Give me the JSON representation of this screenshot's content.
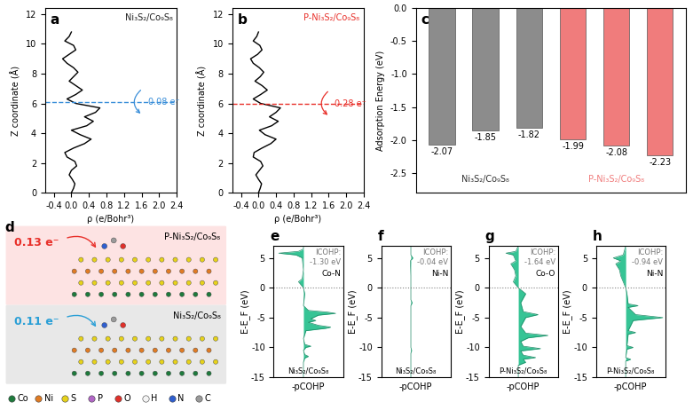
{
  "chart_data": [
    {
      "panel_label": "a",
      "type": "line",
      "title": {
        "text": "Ni₃S₂/Co₉S₈",
        "color": "#222222"
      },
      "x_label": "ρ (e/Bohr³)",
      "y_label": "Z coordinate (Å)",
      "y": [
        0,
        0.3,
        0.6,
        0.9,
        1.2,
        1.5,
        1.8,
        2.1,
        2.4,
        2.7,
        3.0,
        3.3,
        3.6,
        3.9,
        4.2,
        4.5,
        4.8,
        5.1,
        5.4,
        5.7,
        6.0,
        6.3,
        6.6,
        6.9,
        7.2,
        7.5,
        7.8,
        8.1,
        8.4,
        8.7,
        9.0,
        9.3,
        9.6,
        9.9,
        10.2,
        10.5,
        10.8
      ],
      "x": [
        0.0,
        0.05,
        0.08,
        0.02,
        -0.05,
        0.0,
        0.12,
        0.08,
        -0.1,
        -0.15,
        0.05,
        0.3,
        0.45,
        0.2,
        0.0,
        0.35,
        0.5,
        0.3,
        0.55,
        0.65,
        0.1,
        -0.1,
        0.1,
        0.25,
        0.1,
        -0.05,
        0.05,
        0.15,
        0.05,
        -0.1,
        -0.2,
        -0.05,
        0.1,
        0.05,
        -0.15,
        -0.05,
        0.0
      ],
      "color": "#000000",
      "interface": {
        "z": 6.1,
        "color": "#3b8fd9",
        "line_style": "dashed"
      },
      "charge_transfer": {
        "text": "0.08 e⁻",
        "color": "#3b8fd9"
      },
      "xlim": [
        -0.6,
        2.4
      ],
      "xticks": [
        -0.4,
        0.0,
        0.4,
        0.8,
        1.2,
        1.6,
        2.0,
        2.4
      ],
      "ylim": [
        0,
        12.4
      ],
      "yticks": [
        0,
        2,
        4,
        6,
        8,
        10,
        12
      ]
    },
    {
      "panel_label": "b",
      "type": "line",
      "title": {
        "text": "P-Ni₃S₂/Co₉S₈",
        "color": "#e8302a"
      },
      "x_label": "ρ (e/Bohr³)",
      "y_label": "Z coordinate (Å)",
      "y": [
        0,
        0.3,
        0.6,
        0.9,
        1.2,
        1.5,
        1.8,
        2.1,
        2.4,
        2.7,
        3.0,
        3.3,
        3.6,
        3.9,
        4.2,
        4.5,
        4.8,
        5.1,
        5.4,
        5.7,
        6.0,
        6.3,
        6.6,
        6.9,
        7.2,
        7.5,
        7.8,
        8.1,
        8.4,
        8.7,
        9.0,
        9.3,
        9.6,
        9.9,
        10.2,
        10.5,
        10.8
      ],
      "x": [
        0.0,
        0.04,
        0.07,
        0.0,
        -0.06,
        0.02,
        0.1,
        0.05,
        -0.12,
        -0.1,
        0.08,
        0.28,
        0.4,
        0.15,
        0.02,
        0.3,
        0.45,
        0.25,
        0.4,
        0.5,
        0.05,
        -0.12,
        0.05,
        0.2,
        0.08,
        -0.08,
        0.04,
        0.12,
        0.02,
        -0.12,
        -0.18,
        -0.02,
        0.08,
        0.03,
        -0.12,
        -0.04,
        0.0
      ],
      "color": "#000000",
      "interface": {
        "z": 6.0,
        "color": "#e8302a",
        "line_style": "dashed"
      },
      "charge_transfer": {
        "text": "0.28 e⁻",
        "color": "#e8302a"
      },
      "xlim": [
        -0.6,
        2.4
      ],
      "xticks": [
        -0.4,
        0.0,
        0.4,
        0.8,
        1.2,
        1.6,
        2.0,
        2.4
      ],
      "ylim": [
        0,
        12.4
      ],
      "yticks": [
        0,
        2,
        4,
        6,
        8,
        10,
        12
      ]
    },
    {
      "panel_label": "c",
      "type": "bar",
      "y_label": "Adsorption Energy (eV)",
      "categories": [
        null,
        null,
        null,
        null,
        null,
        null
      ],
      "series": [
        {
          "name": "Ni₃S₂/Co₉S₈",
          "color": "#8c8c8c",
          "values": [
            -2.07,
            -1.85,
            -1.82,
            null,
            null,
            null
          ]
        },
        {
          "name": "P-Ni₃S₂/Co₉S₈",
          "color": "#f07c7c",
          "values": [
            null,
            null,
            null,
            -1.99,
            -2.08,
            -2.23
          ]
        }
      ],
      "data_labels": true,
      "ylim": [
        -2.8,
        0
      ],
      "yticks": [
        0.0,
        -0.5,
        -1.0,
        -1.5,
        -2.0,
        -2.5
      ]
    },
    {
      "panel_label": "e",
      "type": "area",
      "x_label": "-pCOHP",
      "y_label": "E-E_F (eV)",
      "bond": "Co-N",
      "icohp": [
        "ICOHP:",
        "-1.30 eV"
      ],
      "model": "Ni₃S₂/Co₉S₈",
      "y": [
        -15,
        -12.5,
        -11.8,
        -11.5,
        -11.2,
        -10.5,
        -10.0,
        -9.8,
        -9.5,
        -8.5,
        -7.2,
        -6.8,
        -6.6,
        -6.3,
        -5.8,
        -5.5,
        -5.2,
        -4.6,
        -4.3,
        -4.1,
        -3.8,
        -3.0,
        -1.0,
        0.0,
        0.5,
        1.0,
        1.5,
        3.0,
        5.0,
        5.5,
        5.8,
        6.1,
        6.5,
        7.0
      ],
      "x": [
        0,
        0,
        0.05,
        0.2,
        0.05,
        0,
        0.1,
        0.3,
        0.05,
        0,
        0.1,
        0.9,
        1.1,
        0.6,
        0.2,
        0.5,
        0.3,
        0.6,
        1.3,
        1.0,
        0.2,
        0,
        0.05,
        0,
        -0.1,
        -0.2,
        -0.05,
        0,
        -0.05,
        -0.3,
        -1.0,
        -0.2,
        0,
        0
      ],
      "color": "#36c495",
      "fermi_level": 0,
      "tick_labels": "y",
      "xlim": [
        -1.2,
        1.6
      ],
      "ylim": [
        -15,
        7
      ],
      "yticks": [
        -15,
        -10,
        -5,
        0,
        5
      ]
    },
    {
      "panel_label": "f",
      "type": "area",
      "x_label": "-pCOHP",
      "y_label": "E-E_F (eV)",
      "bond": "Ni-N",
      "icohp": [
        "ICOHP:",
        "-0.04 eV"
      ],
      "model": "Ni₃S₂/Co₉S₈",
      "y": [
        -15,
        -11,
        -10.5,
        -10,
        -3,
        -2.5,
        -2,
        0,
        2,
        4.5,
        5,
        5.5,
        7
      ],
      "x": [
        0,
        0,
        0.03,
        0,
        0,
        0.05,
        0,
        0,
        0,
        -0.02,
        0.08,
        0,
        0
      ],
      "color": "#36c495",
      "fermi_level": 0,
      "tick_labels": "y",
      "xlim": [
        -1.2,
        1.6
      ],
      "ylim": [
        -15,
        7
      ],
      "yticks": [
        -15,
        -10,
        -5,
        0,
        5
      ]
    },
    {
      "panel_label": "g",
      "type": "area",
      "x_label": "-pCOHP",
      "y_label": "E-E_F (eV)",
      "bond": "Co-O",
      "icohp": [
        "ICOHP:",
        "-1.64 eV"
      ],
      "model": "P-Ni₃S₂/Co₉S₈",
      "y": [
        -15,
        -13,
        -12.5,
        -12,
        -11.7,
        -11.3,
        -10.6,
        -10.2,
        -9.8,
        -9,
        -8.4,
        -8,
        -7.6,
        -6.5,
        -5,
        -4.5,
        -4,
        -2.5,
        -1,
        0,
        1,
        2,
        3,
        4,
        4.5,
        5.5,
        5.8,
        6.1,
        7
      ],
      "x": [
        0,
        0,
        0.3,
        0.2,
        0.7,
        0.2,
        0.1,
        0.9,
        0.2,
        0.1,
        0.4,
        1.2,
        0.3,
        0.1,
        0.3,
        0.8,
        0.2,
        0.1,
        0.3,
        0,
        -0.2,
        -0.1,
        -0.15,
        -0.3,
        -0.1,
        -0.2,
        -0.5,
        -0.1,
        0
      ],
      "color": "#36c495",
      "fermi_level": 0,
      "tick_labels": "y",
      "xlim": [
        -1.2,
        1.6
      ],
      "ylim": [
        -15,
        7
      ],
      "yticks": [
        -15,
        -10,
        -5,
        0,
        5
      ]
    },
    {
      "panel_label": "h",
      "type": "area",
      "x_label": "-pCOHP",
      "y_label": "E-E_F (eV)",
      "bond": "Ni-N",
      "icohp": [
        "ICOHP:",
        "-0.94 eV"
      ],
      "model": "P-Ni₃S₂/Co₉S₈",
      "y": [
        -15,
        -12.3,
        -12,
        -11.7,
        -10.3,
        -10,
        -9.7,
        -7.8,
        -7.5,
        -7.2,
        -5.5,
        -5,
        -4.5,
        -3.3,
        -3,
        -2.7,
        -1,
        0,
        1,
        2,
        3,
        4,
        4.5,
        5,
        5.5,
        7
      ],
      "x": [
        0,
        0,
        0.2,
        0,
        0.05,
        0.3,
        0.05,
        0.1,
        0.4,
        0.1,
        0.3,
        1.5,
        0.4,
        0.1,
        0.5,
        0.1,
        0.05,
        0,
        -0.1,
        -0.2,
        -0.25,
        -0.4,
        -0.2,
        -0.5,
        -0.1,
        0
      ],
      "color": "#36c495",
      "fermi_level": 0,
      "tick_labels": "y",
      "xlim": [
        -1.2,
        1.6
      ],
      "ylim": [
        -15,
        7
      ],
      "yticks": [
        -15,
        -10,
        -5,
        0,
        5
      ]
    }
  ],
  "diagram": {
    "panel_label": "d",
    "structures": [
      {
        "label": "P-Ni₃S₂/Co₉S₈",
        "charge_transfer": "0.13 e⁻",
        "color": "#e8302a",
        "background": "#fde3e3"
      },
      {
        "label": "Ni₃S₂/Co₉S₈",
        "charge_transfer": "0.11 e⁻",
        "color": "#2a9fd6",
        "background": "#e8e8e8"
      }
    ],
    "atom_legend": [
      {
        "element": "Co",
        "color": "#1e7a3c"
      },
      {
        "element": "Ni",
        "color": "#e07b24"
      },
      {
        "element": "S",
        "color": "#e6d21a"
      },
      {
        "element": "P",
        "color": "#b266c7"
      },
      {
        "element": "O",
        "color": "#e0302a"
      },
      {
        "element": "H",
        "color": "#f4f4f4"
      },
      {
        "element": "N",
        "color": "#2f5fd0"
      },
      {
        "element": "C",
        "color": "#9a9a9a"
      }
    ]
  }
}
